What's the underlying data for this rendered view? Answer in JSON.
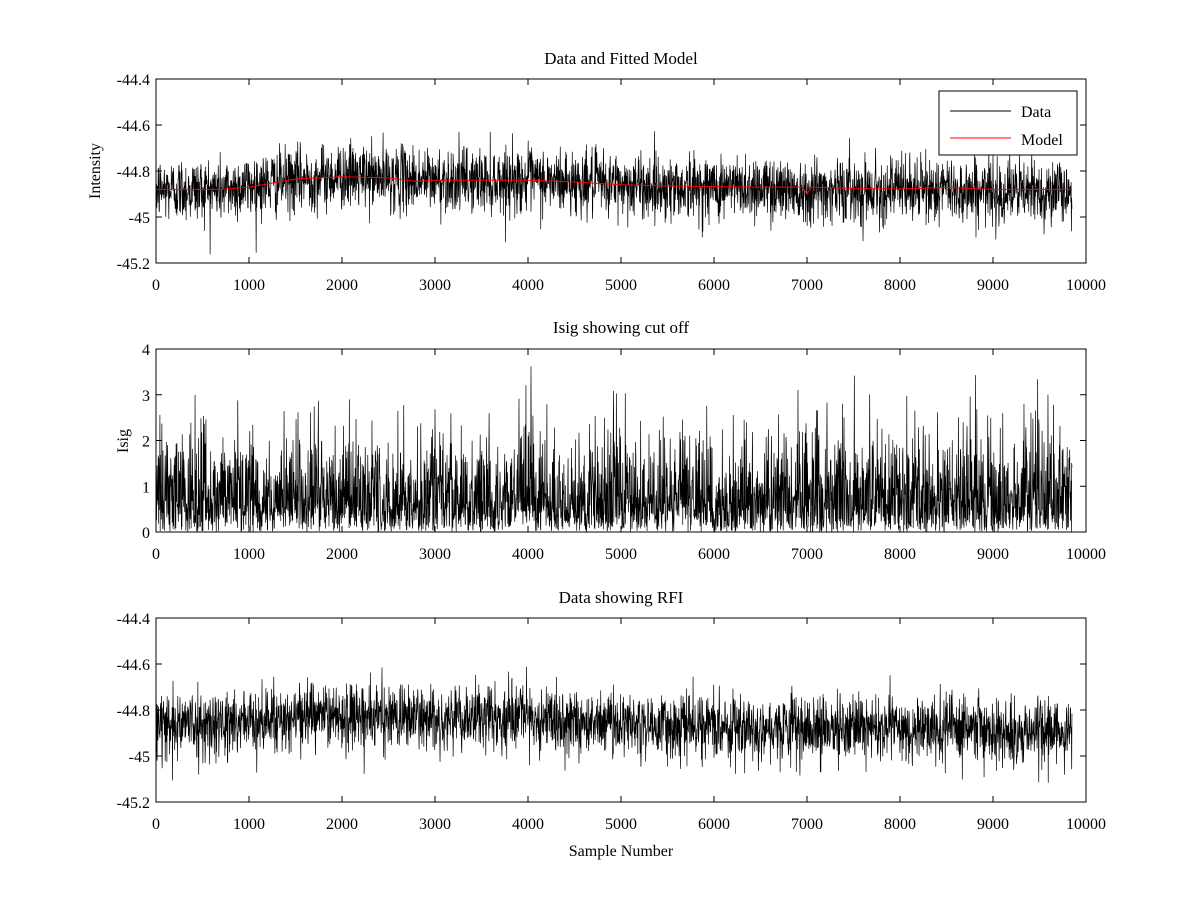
{
  "figure": {
    "background": "#ffffff",
    "xlabel": "Sample Number"
  },
  "chart_data": [
    {
      "type": "line",
      "title": "Data and Fitted Model",
      "xlabel": "",
      "ylabel": "Intensity",
      "xlim": [
        0,
        10000
      ],
      "ylim": [
        -45.2,
        -44.4
      ],
      "xticks": [
        0,
        1000,
        2000,
        3000,
        4000,
        5000,
        6000,
        7000,
        8000,
        9000,
        10000
      ],
      "xtick_labels": [
        "0",
        "1000",
        "2000",
        "3000",
        "4000",
        "5000",
        "6000",
        "7000",
        "8000",
        "9000",
        "10000"
      ],
      "yticks": [
        -44.4,
        -44.6,
        -44.8,
        -45,
        -45.2
      ],
      "ytick_labels": [
        "-44.4",
        "-44.6",
        "-44.8",
        "-45",
        "-45.2"
      ],
      "grid": false,
      "legend": "top-right",
      "series": [
        {
          "name": "Data",
          "color": "#000000",
          "kind": "noisy",
          "n_points": 9850,
          "baseline_x": [
            0,
            700,
            1500,
            2000,
            2500,
            3000,
            3500,
            4000,
            4500,
            5000,
            5500,
            6000,
            6500,
            7000,
            7500,
            8000,
            8500,
            9000,
            9850
          ],
          "baseline_y": [
            -44.88,
            -44.88,
            -44.84,
            -44.82,
            -44.83,
            -44.84,
            -44.84,
            -44.84,
            -44.85,
            -44.86,
            -44.87,
            -44.87,
            -44.87,
            -44.88,
            -44.88,
            -44.88,
            -44.88,
            -44.89,
            -44.89
          ],
          "noise_sd": 0.07
        },
        {
          "name": "Model",
          "color": "#ff0000",
          "x": [
            0,
            300,
            700,
            1000,
            1500,
            2000,
            2500,
            2800,
            3000,
            3500,
            4000,
            4500,
            5000,
            5500,
            6000,
            6500,
            6950,
            7000,
            7050,
            7500,
            8000,
            8500,
            9000,
            9500,
            9850
          ],
          "y": [
            -44.88,
            -44.88,
            -44.88,
            -44.87,
            -44.835,
            -44.825,
            -44.83,
            -44.845,
            -44.84,
            -44.84,
            -44.84,
            -44.848,
            -44.86,
            -44.865,
            -44.868,
            -44.87,
            -44.87,
            -44.9,
            -44.87,
            -44.876,
            -44.878,
            -44.872,
            -44.88,
            -44.88,
            -44.88
          ]
        }
      ]
    },
    {
      "type": "line",
      "title": "Isig showing cut off",
      "xlabel": "",
      "ylabel": "Isig",
      "xlim": [
        0,
        10000
      ],
      "ylim": [
        0,
        4
      ],
      "xticks": [
        0,
        1000,
        2000,
        3000,
        4000,
        5000,
        6000,
        7000,
        8000,
        9000,
        10000
      ],
      "xtick_labels": [
        "0",
        "1000",
        "2000",
        "3000",
        "4000",
        "5000",
        "6000",
        "7000",
        "8000",
        "9000",
        "10000"
      ],
      "yticks": [
        0,
        1,
        2,
        3,
        4
      ],
      "ytick_labels": [
        "0",
        "1",
        "2",
        "3",
        "4"
      ],
      "grid": false,
      "legend": "none",
      "series": [
        {
          "color": "#000000",
          "kind": "abs-noise",
          "n_points": 9850,
          "mean_level": 0.8,
          "max_value": 3.65
        }
      ]
    },
    {
      "type": "line",
      "title": "Data showing RFI",
      "xlabel": "Sample Number",
      "ylabel": "",
      "xlim": [
        0,
        10000
      ],
      "ylim": [
        -45.2,
        -44.4
      ],
      "xticks": [
        0,
        1000,
        2000,
        3000,
        4000,
        5000,
        6000,
        7000,
        8000,
        9000,
        10000
      ],
      "xtick_labels": [
        "0",
        "1000",
        "2000",
        "3000",
        "4000",
        "5000",
        "6000",
        "7000",
        "8000",
        "9000",
        "10000"
      ],
      "yticks": [
        -44.4,
        -44.6,
        -44.8,
        -45,
        -45.2
      ],
      "ytick_labels": [
        "-44.4",
        "-44.6",
        "-44.8",
        "-45",
        "-45.2"
      ],
      "grid": false,
      "legend": "none",
      "series": [
        {
          "color": "#000000",
          "kind": "noisy",
          "n_points": 9850,
          "baseline_x": [
            0,
            700,
            1500,
            2000,
            2500,
            3000,
            3500,
            4000,
            4500,
            5000,
            5500,
            6000,
            6500,
            7000,
            7500,
            8000,
            8500,
            9000,
            9850
          ],
          "baseline_y": [
            -44.86,
            -44.86,
            -44.83,
            -44.82,
            -44.83,
            -44.84,
            -44.84,
            -44.84,
            -44.85,
            -44.86,
            -44.87,
            -44.87,
            -44.87,
            -44.88,
            -44.88,
            -44.88,
            -44.88,
            -44.89,
            -44.89
          ],
          "noise_sd": 0.07
        }
      ]
    }
  ]
}
